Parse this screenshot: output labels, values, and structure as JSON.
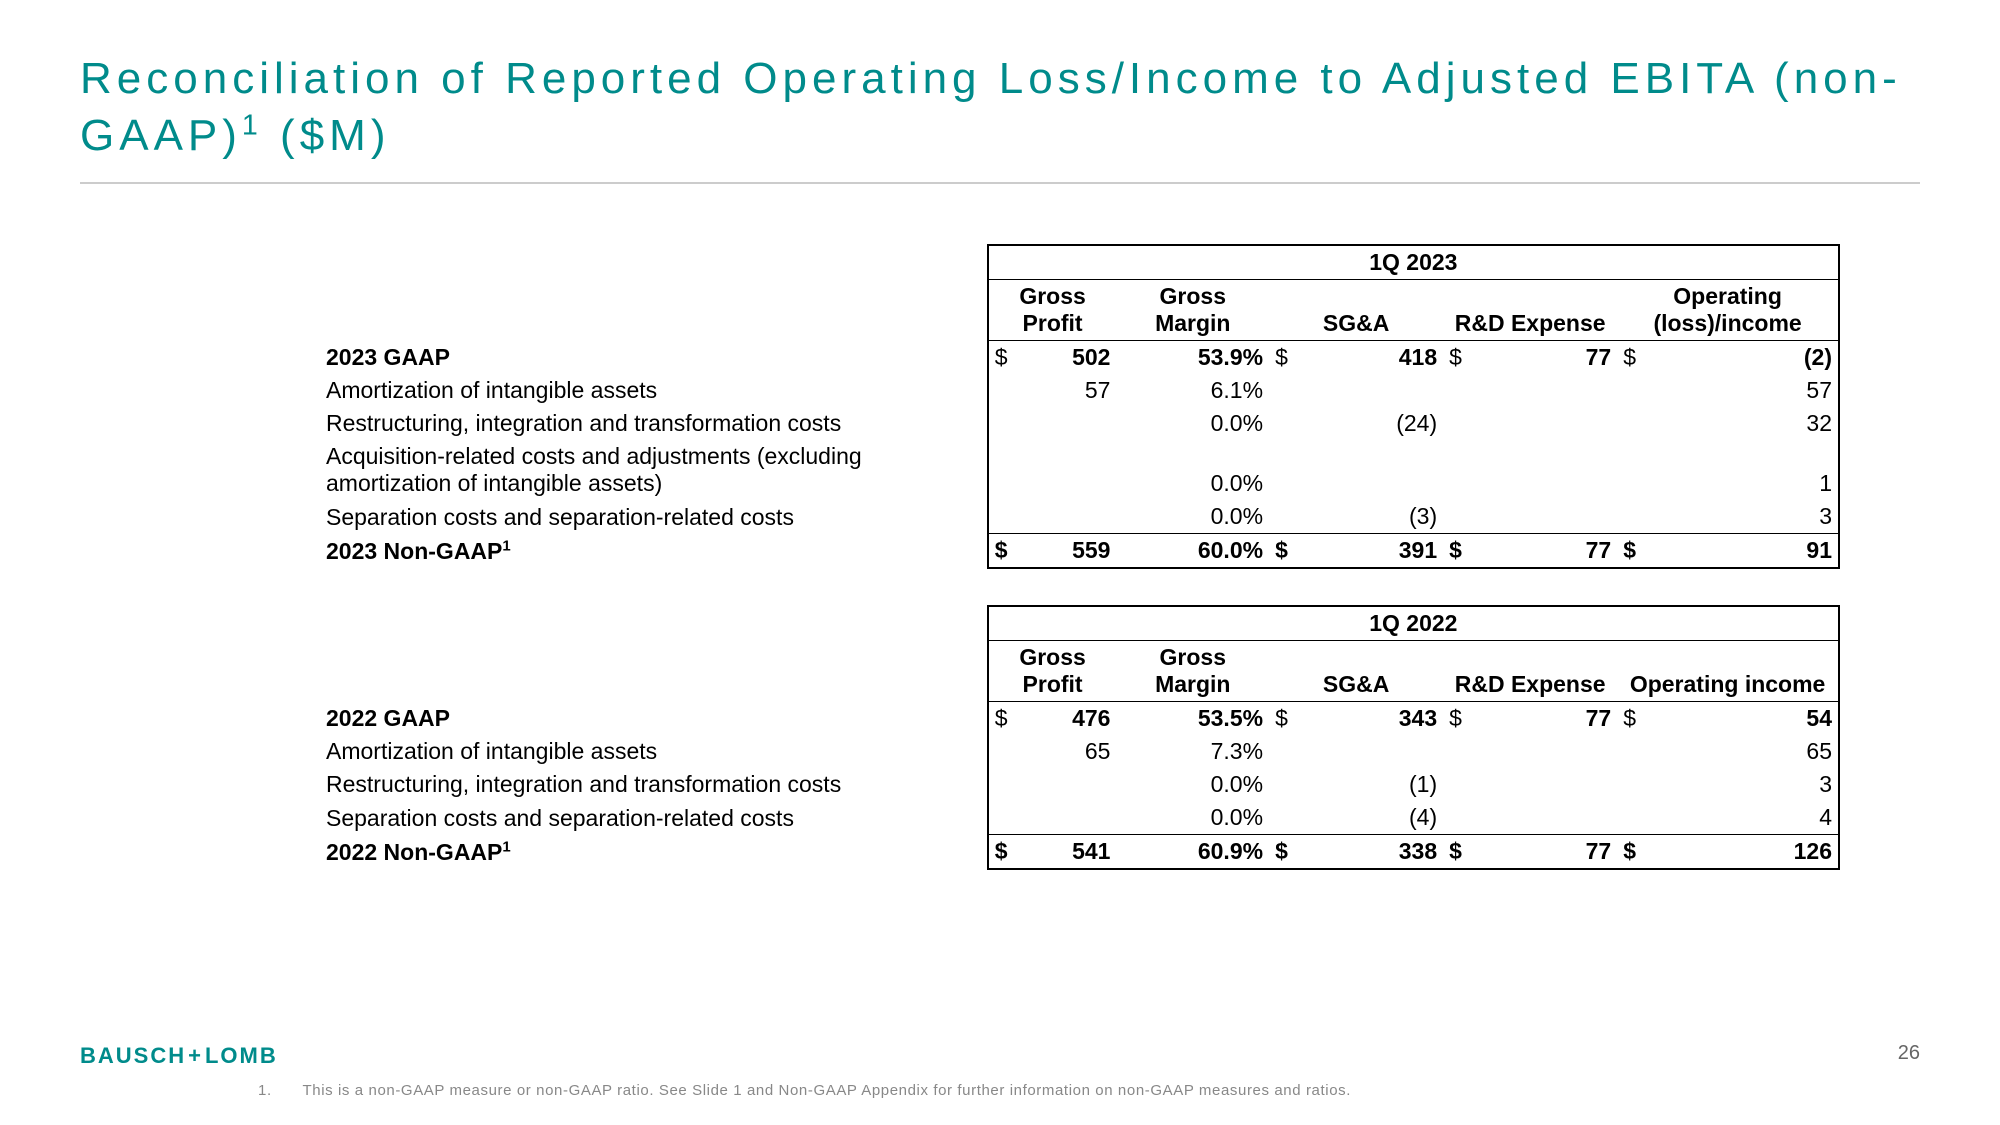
{
  "title_line": "Reconciliation of Reported Operating Loss/Income to Adjusted EBITA (non-GAAP)¹ ($M)",
  "colors": {
    "accent": "#008b8b",
    "rule": "#cccccc",
    "text": "#000000",
    "muted": "#888888"
  },
  "headers": {
    "gross_profit": "Gross Profit",
    "gross_margin": "Gross Margin",
    "sga": "SG&A",
    "rd": "R&D Expense"
  },
  "t1": {
    "period": "1Q 2023",
    "op_hdr": "Operating (loss)/income",
    "rows": [
      {
        "label": "2023 GAAP",
        "bold": true,
        "gp_cur": "$",
        "gp": "502",
        "gm": "53.9%",
        "sga_cur": "$",
        "sga": "418",
        "rd_cur": "$",
        "rd": "77",
        "op_cur": "$",
        "op": "(2)"
      },
      {
        "label": "Amortization of intangible assets",
        "gp": "57",
        "gm": "6.1%",
        "op": "57"
      },
      {
        "label": "Restructuring, integration and transformation costs",
        "gm": "0.0%",
        "sga": "(24)",
        "op": "32"
      },
      {
        "label": "Acquisition-related costs and adjustments (excluding amortization of intangible assets)",
        "gm": "0.0%",
        "op": "1"
      },
      {
        "label": "Separation costs and separation-related costs",
        "gm": "0.0%",
        "sga": "(3)",
        "op": "3"
      }
    ],
    "total": {
      "label": "2023 Non-GAAP¹",
      "gp_cur": "$",
      "gp": "559",
      "gm": "60.0%",
      "sga_cur": "$",
      "sga": "391",
      "rd_cur": "$",
      "rd": "77",
      "op_cur": "$",
      "op": "91"
    }
  },
  "t2": {
    "period": "1Q 2022",
    "op_hdr": "Operating income",
    "rows": [
      {
        "label": "2022 GAAP",
        "bold": true,
        "gp_cur": "$",
        "gp": "476",
        "gm": "53.5%",
        "sga_cur": "$",
        "sga": "343",
        "rd_cur": "$",
        "rd": "77",
        "op_cur": "$",
        "op": "54"
      },
      {
        "label": "Amortization of intangible assets",
        "gp": "65",
        "gm": "7.3%",
        "op": "65"
      },
      {
        "label": "Restructuring, integration and transformation costs",
        "gm": "0.0%",
        "sga": "(1)",
        "op": "3"
      },
      {
        "label": "Separation costs and separation-related costs",
        "gm": "0.0%",
        "sga": "(4)",
        "op": "4"
      }
    ],
    "total": {
      "label": "2022 Non-GAAP¹",
      "gp_cur": "$",
      "gp": "541",
      "gm": "60.9%",
      "sga_cur": "$",
      "sga": "338",
      "rd_cur": "$",
      "rd": "77",
      "op_cur": "$",
      "op": "126"
    }
  },
  "logo": {
    "left": "BAUSCH",
    "plus": "+",
    "right": "LOMB"
  },
  "page_number": "26",
  "footnote": {
    "num": "1.",
    "text": "This is a non-GAAP measure or non-GAAP ratio. See Slide 1 and Non-GAAP Appendix for further information on non-GAAP measures and ratios."
  }
}
